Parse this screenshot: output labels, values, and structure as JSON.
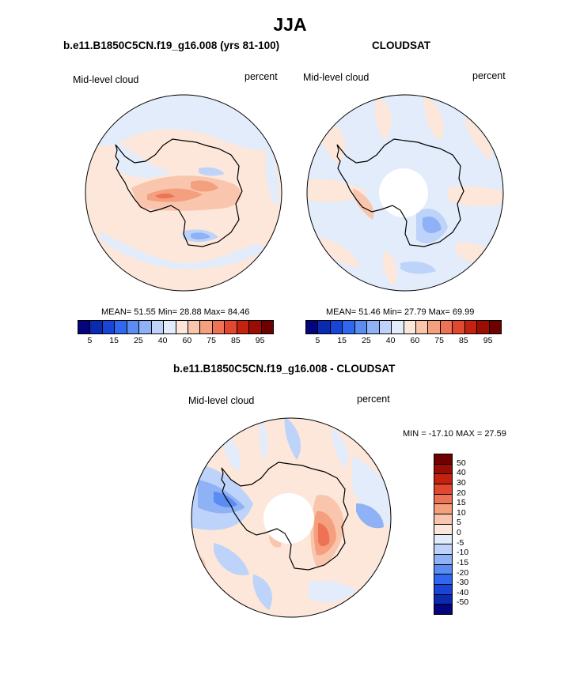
{
  "main_title": "JJA",
  "panels": [
    {
      "title": "b.e11.B1850C5CN.f19_g16.008 (yrs 81-100)",
      "variable": "Mid-level cloud",
      "units": "percent",
      "stats": "MEAN= 51.55  Min= 28.88  Max= 84.46"
    },
    {
      "title": "CLOUDSAT",
      "variable": "Mid-level cloud",
      "units": "percent",
      "stats": "MEAN= 51.46  Min= 27.79  Max= 69.99"
    },
    {
      "title": "b.e11.B1850C5CN.f19_g16.008 - CLOUDSAT",
      "variable": "Mid-level cloud",
      "units": "percent",
      "stats": "MIN = -17.10 MAX =  27.59"
    }
  ],
  "colorbar_abs": {
    "colors": [
      "#04057e",
      "#0a2bb0",
      "#1845d8",
      "#2f67ef",
      "#5a8cf2",
      "#8fb1f5",
      "#bdd3f9",
      "#e2ecfb",
      "#fce7da",
      "#f9c6ad",
      "#f4a07f",
      "#ee7356",
      "#e2472f",
      "#c4220f",
      "#9b0d03",
      "#6e0000"
    ],
    "tick_labels": [
      "5",
      "15",
      "25",
      "40",
      "60",
      "75",
      "85",
      "95"
    ]
  },
  "colorbar_diff": {
    "colors": [
      "#6e0000",
      "#9b0d03",
      "#c4220f",
      "#e2472f",
      "#ee7356",
      "#f4a07f",
      "#f9c6ad",
      "#fce7da",
      "#e2ecfb",
      "#bdd3f9",
      "#8fb1f5",
      "#5a8cf2",
      "#2f67ef",
      "#1845d8",
      "#0a2bb0",
      "#04057e"
    ],
    "tick_labels": [
      "50",
      "40",
      "30",
      "20",
      "15",
      "10",
      "5",
      "0",
      "-5",
      "-10",
      "-15",
      "-20",
      "-30",
      "-40",
      "-50"
    ]
  }
}
